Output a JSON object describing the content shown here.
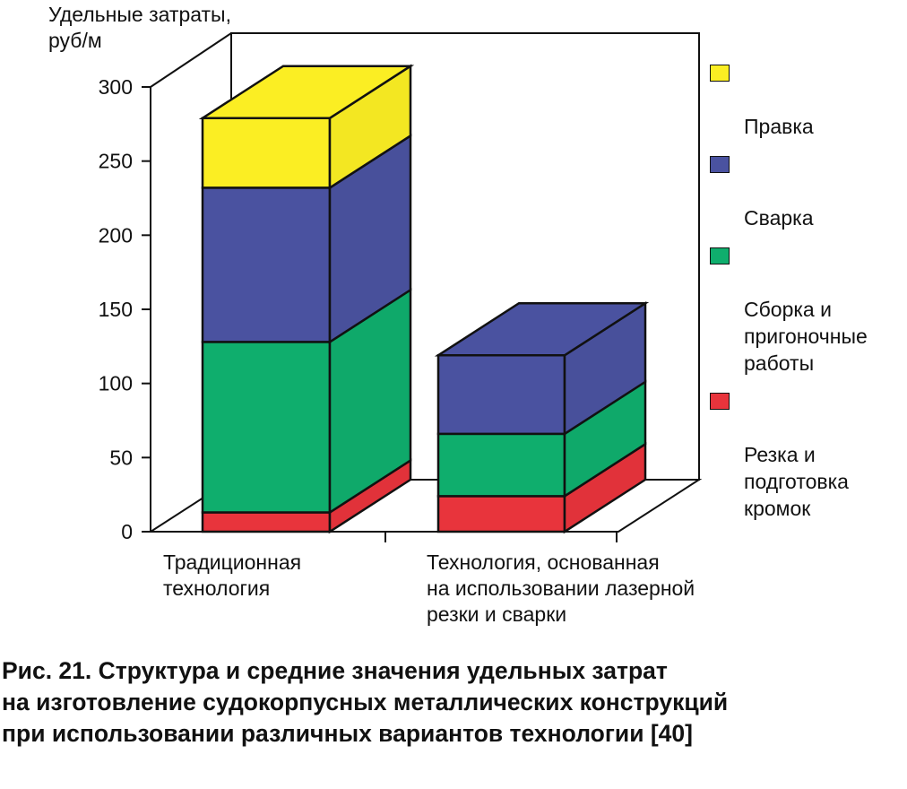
{
  "chart_data": {
    "type": "bar",
    "stacked": true,
    "three_d": true,
    "ylabel": "Удельные затраты,\nруб/м",
    "ylim": [
      0,
      300
    ],
    "yticks": [
      0,
      50,
      100,
      150,
      200,
      250,
      300
    ],
    "categories": [
      "Традиционная\nтехнология",
      "Технология, основанная\nна использовании лазерной\nрезки и сварки"
    ],
    "series": [
      {
        "name": "Резка и\nподготовка\nкромок",
        "color": "#e8343c",
        "values": [
          13,
          24
        ]
      },
      {
        "name": "Сборка и\nпригоночные\nработы",
        "color": "#0fae6d",
        "values": [
          115,
          42
        ]
      },
      {
        "name": "Сварка",
        "color": "#4a52a0",
        "values": [
          104,
          53
        ]
      },
      {
        "name": "Правка",
        "color": "#fbee23",
        "values": [
          47,
          0
        ]
      }
    ],
    "legend_position": "right"
  },
  "caption": "Рис. 21. Структура и средние значения удельных затрат\nна изготовление судокорпусных металлических конструкций\nпри использовании различных вариантов технологии [40]"
}
